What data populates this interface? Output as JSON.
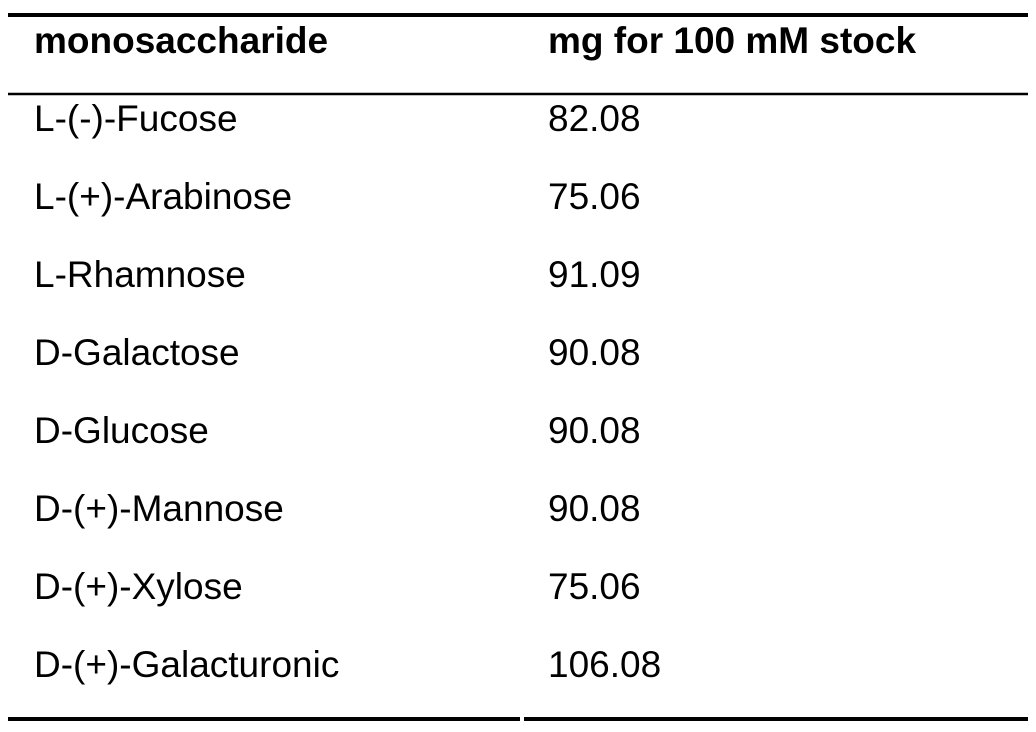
{
  "table": {
    "header": [
      "monosaccharide",
      "mg for 100 mM stock"
    ],
    "rows": [
      [
        "L-(-)-Fucose",
        "82.08"
      ],
      [
        "L-(+)-Arabinose",
        "75.06"
      ],
      [
        "L-Rhamnose",
        "91.09"
      ],
      [
        "D-Galactose",
        "90.08"
      ],
      [
        "D-Glucose",
        "90.08"
      ],
      [
        "D-(+)-Mannose",
        "90.08"
      ],
      [
        "D-(+)-Xylose",
        "75.06"
      ],
      [
        "D-(+)-Galacturonic",
        "106.08"
      ]
    ]
  }
}
